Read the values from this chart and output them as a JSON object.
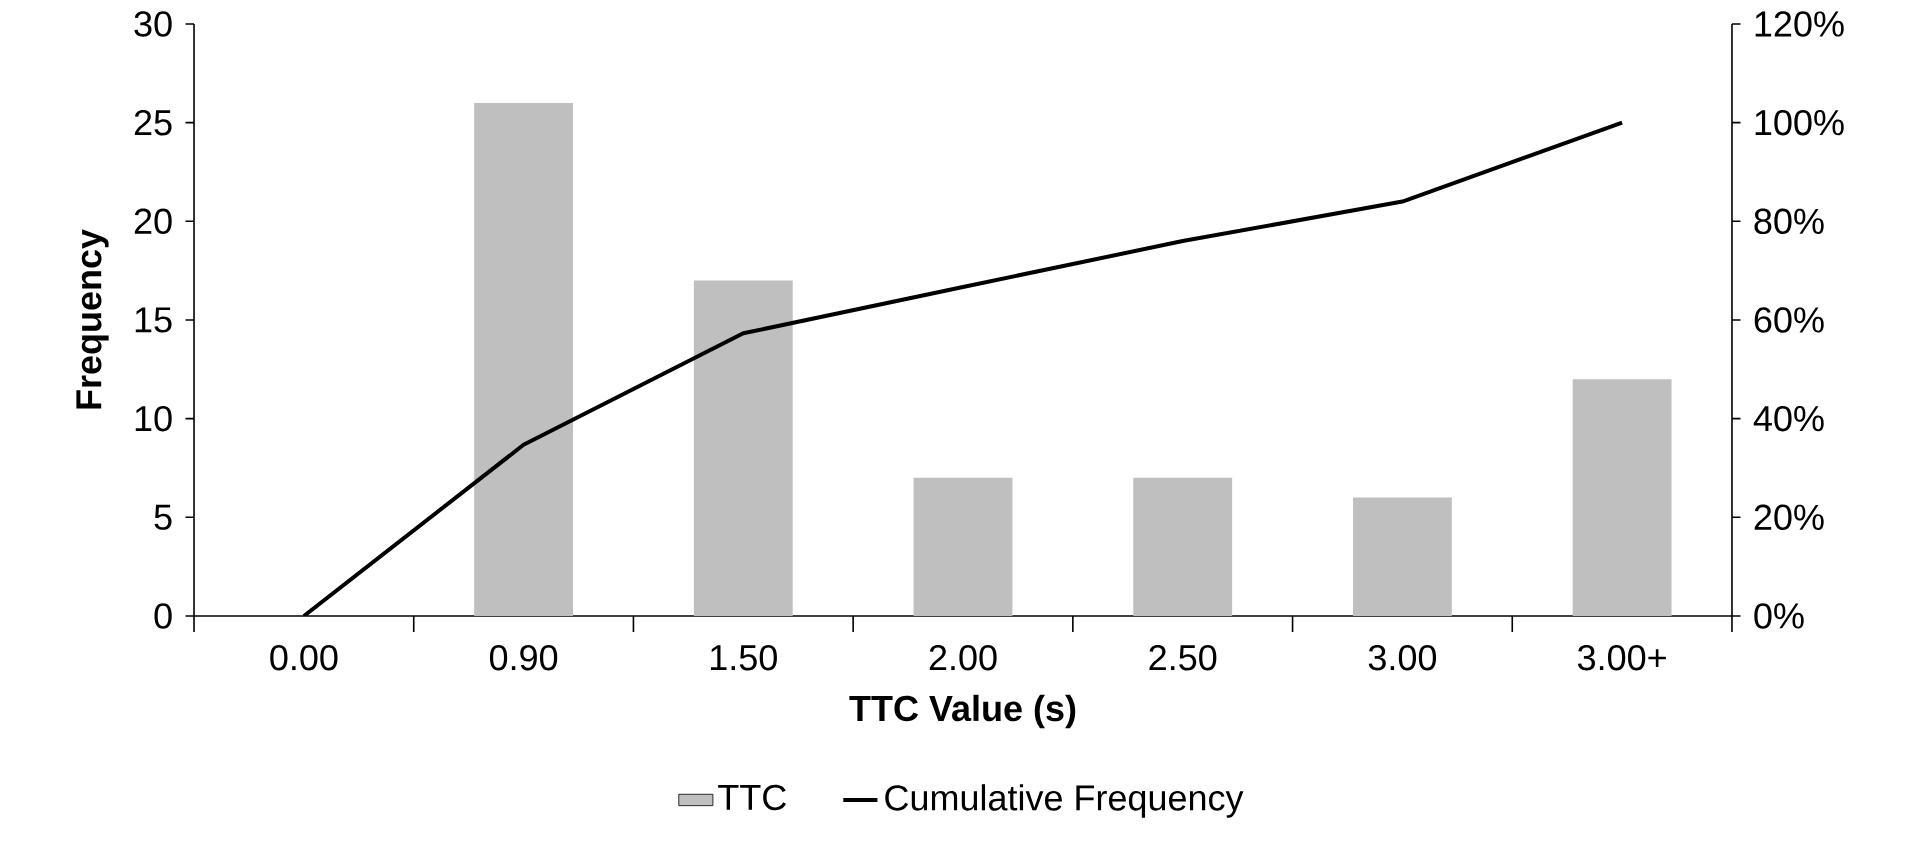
{
  "chart_data": {
    "type": "bar",
    "categories": [
      "0.00",
      "0.90",
      "1.50",
      "2.00",
      "2.50",
      "3.00",
      "3.00+"
    ],
    "xlabel": "TTC Value (s)",
    "ylabel": "Frequency",
    "ylim": [
      0,
      30
    ],
    "yticks": [
      0,
      5,
      10,
      15,
      20,
      25,
      30
    ],
    "y2lim": [
      0,
      120
    ],
    "y2ticks": [
      {
        "value": 0,
        "label": "0%"
      },
      {
        "value": 20,
        "label": "20%"
      },
      {
        "value": 40,
        "label": "40%"
      },
      {
        "value": 60,
        "label": "60%"
      },
      {
        "value": 80,
        "label": "80%"
      },
      {
        "value": 100,
        "label": "100%"
      },
      {
        "value": 120,
        "label": "120%"
      }
    ],
    "legend": "bottom",
    "series": [
      {
        "name": "TTC",
        "color": "#bfbfbf",
        "values": [
          0,
          26,
          17,
          7,
          7,
          6,
          12
        ]
      },
      {
        "name": "Cumulative Frequency",
        "type": "line",
        "axis": "y2",
        "color": "#000000",
        "values": [
          0,
          34.7,
          57.3,
          66.7,
          76,
          84,
          100
        ]
      }
    ]
  }
}
